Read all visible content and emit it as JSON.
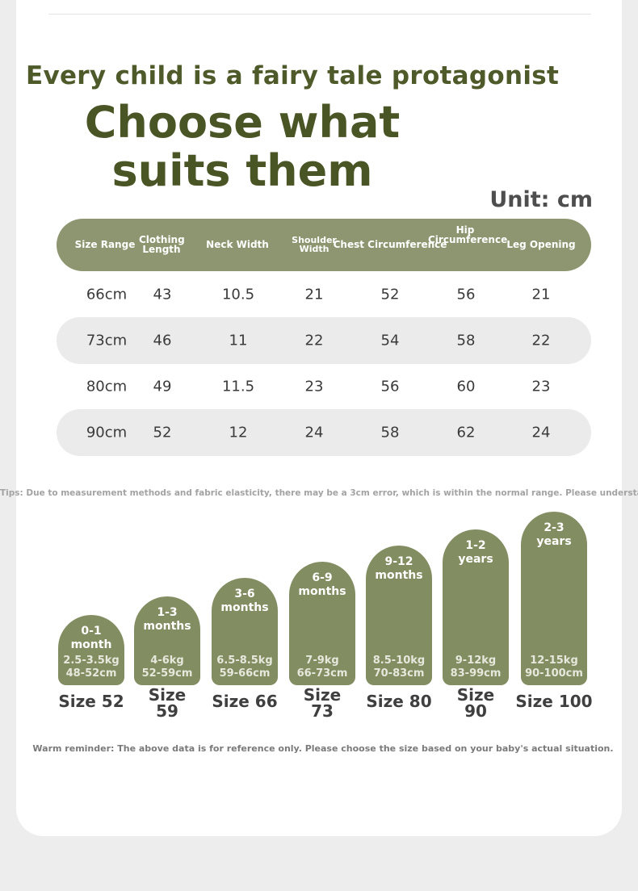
{
  "header": {
    "subtitle": "Every child is a fairy tale protagonist",
    "title": "Choose what suits them",
    "unit": "Unit: cm"
  },
  "table": {
    "headers": [
      "Size Range",
      "Clothing Length",
      "Neck Width",
      "Shoulder Width",
      "Chest Circumference",
      "Hip Circumference",
      "Leg Opening"
    ],
    "rows": [
      [
        "66cm",
        "43",
        "10.5",
        "21",
        "52",
        "56",
        "21"
      ],
      [
        "73cm",
        "46",
        "11",
        "22",
        "54",
        "58",
        "22"
      ],
      [
        "80cm",
        "49",
        "11.5",
        "23",
        "56",
        "60",
        "23"
      ],
      [
        "90cm",
        "52",
        "12",
        "24",
        "58",
        "62",
        "24"
      ]
    ]
  },
  "tips": "Tips: Due to measurement methods and fabric elasticity, there may be a 3cm error, which is within the normal range. Please understand.",
  "sizes": [
    {
      "age": "0-1 month",
      "weight": "2.5-3.5kg",
      "height": "48-52cm",
      "label": "Size 52"
    },
    {
      "age": "1-3 months",
      "weight": "4-6kg",
      "height": "52-59cm",
      "label": "Size 59"
    },
    {
      "age": "3-6 months",
      "weight": "6.5-8.5kg",
      "height": "59-66cm",
      "label": "Size 66"
    },
    {
      "age": "6-9 months",
      "weight": "7-9kg",
      "height": "66-73cm",
      "label": "Size 73"
    },
    {
      "age": "9-12 months",
      "weight": "8.5-10kg",
      "height": "70-83cm",
      "label": "Size 80"
    },
    {
      "age": "1-2 years",
      "weight": "9-12kg",
      "height": "83-99cm",
      "label": "Size 90"
    },
    {
      "age": "2-3 years",
      "weight": "12-15kg",
      "height": "90-100cm",
      "label": "Size 100"
    }
  ],
  "reminder": "Warm reminder: The above data is for reference only. Please choose the size based on your baby's actual situation.",
  "colors": {
    "olive_text": "#4f5a2a",
    "header_bar": "#8d9670",
    "size_pill": "#838d62",
    "row_shade": "#ebebeb"
  }
}
